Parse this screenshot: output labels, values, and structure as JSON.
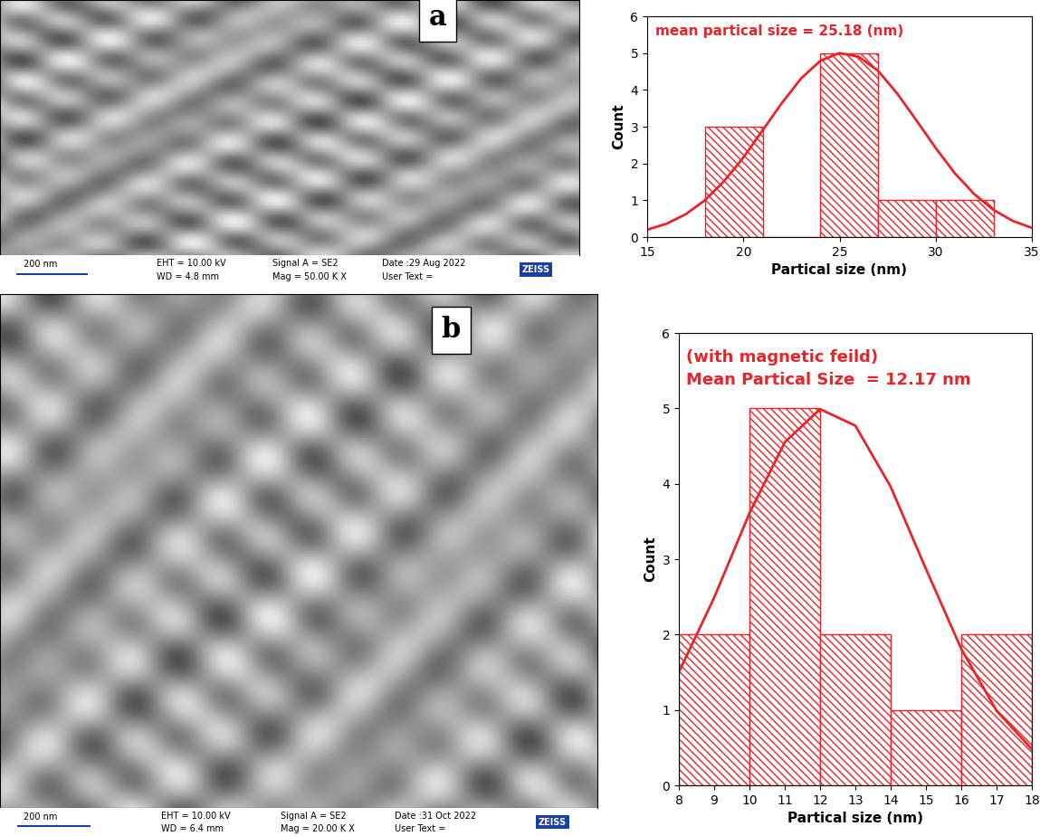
{
  "micrographs": [
    {
      "label": "a",
      "scale_bar": "200 nm",
      "info": [
        [
          "EHT = 10.00 kV",
          "WD = 4.8 mm"
        ],
        [
          "Signal A = SE2",
          "Mag = 50.00 K X"
        ],
        [
          "Date :29 Aug 2022",
          "User Text ="
        ]
      ],
      "brand": "ZEISS"
    },
    {
      "label": "b",
      "scale_bar": "200 nm",
      "info": [
        [
          "EHT = 10.00 kV",
          "WD = 6.4 mm"
        ],
        [
          "Signal A = SE2",
          "Mag = 20.00 K X"
        ],
        [
          "Date :31 Oct 2022",
          "User Text ="
        ]
      ],
      "brand": "ZEISS"
    }
  ],
  "chart_data": [
    {
      "type": "histogram",
      "annotations": [
        "mean partical size = 25.18 (nm)"
      ],
      "x_label": "Partical size (nm)",
      "y_label": "Count",
      "color": "#e8242a",
      "bins": [
        18,
        21,
        24,
        27,
        30,
        33
      ],
      "counts": [
        3,
        0,
        5,
        1,
        1
      ],
      "curve": {
        "x": [
          15,
          16,
          17,
          18,
          19,
          20,
          21,
          22,
          23,
          24,
          25,
          26,
          27,
          28,
          29,
          30,
          31,
          32,
          33,
          34,
          35
        ],
        "values": [
          0.2,
          0.36,
          0.62,
          1.0,
          1.52,
          2.16,
          2.9,
          3.64,
          4.31,
          4.79,
          5.0,
          4.9,
          4.52,
          3.9,
          3.17,
          2.42,
          1.73,
          1.17,
          0.74,
          0.44,
          0.25
        ]
      },
      "xlim": [
        15,
        35
      ],
      "xticks": [
        15,
        20,
        25,
        30,
        35
      ],
      "ylim": [
        0,
        6
      ],
      "yticks": [
        0,
        1,
        2,
        3,
        4,
        5,
        6
      ]
    },
    {
      "type": "histogram",
      "annotations": [
        "(with magnetic feild)",
        "Mean Partical Size  = 12.17 nm"
      ],
      "x_label": "Partical size (nm)",
      "y_label": "Count",
      "color": "#e8242a",
      "bins": [
        8,
        10,
        12,
        14,
        16,
        18
      ],
      "counts": [
        2,
        5,
        2,
        1,
        2
      ],
      "curve": {
        "x": [
          8,
          9,
          10,
          11,
          12,
          13,
          14,
          15,
          16,
          17,
          18
        ],
        "values": [
          1.5,
          2.49,
          3.61,
          4.55,
          4.99,
          4.77,
          3.96,
          2.87,
          1.81,
          0.99,
          0.48
        ]
      },
      "xlim": [
        8,
        18
      ],
      "xticks": [
        8,
        9,
        10,
        11,
        12,
        13,
        14,
        15,
        16,
        17,
        18
      ],
      "ylim": [
        0,
        6
      ],
      "yticks": [
        0,
        1,
        2,
        3,
        4,
        5,
        6
      ]
    }
  ]
}
